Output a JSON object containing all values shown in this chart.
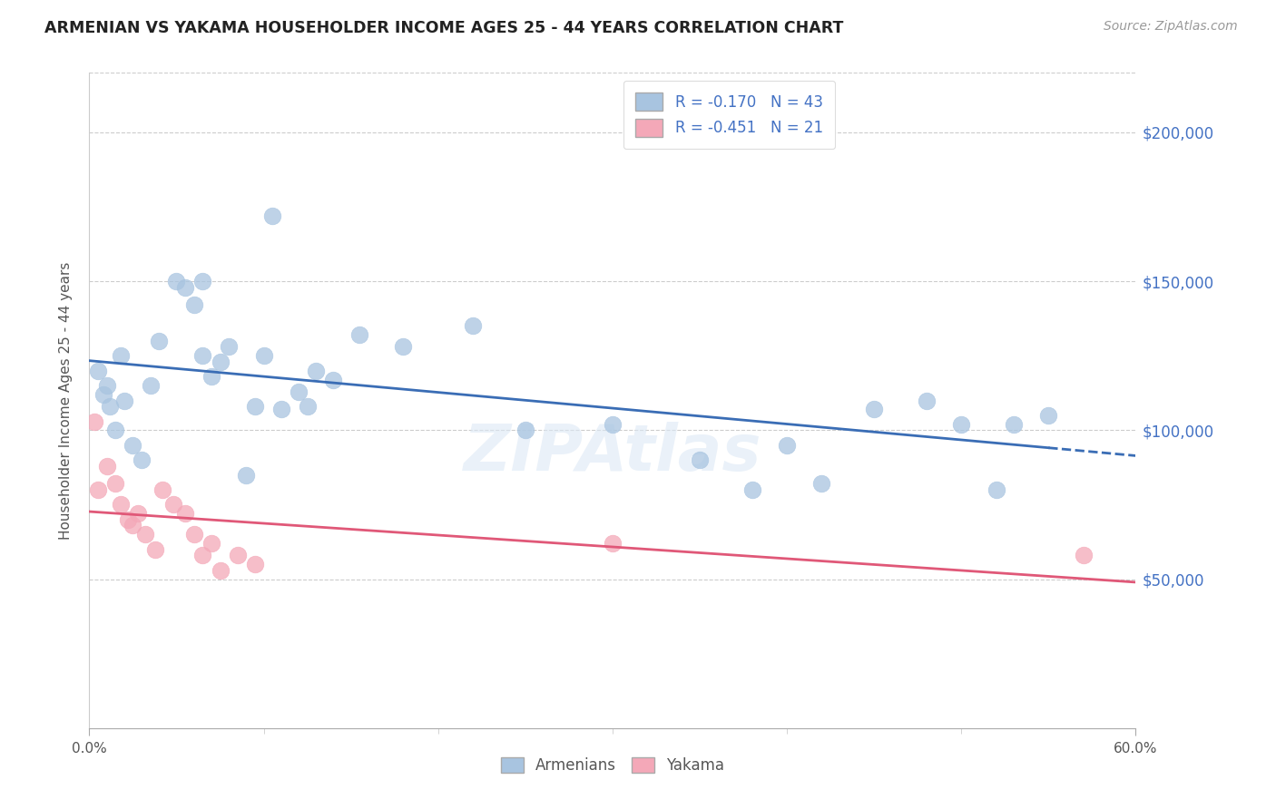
{
  "title": "ARMENIAN VS YAKAMA HOUSEHOLDER INCOME AGES 25 - 44 YEARS CORRELATION CHART",
  "source": "Source: ZipAtlas.com",
  "ylabel": "Householder Income Ages 25 - 44 years",
  "xlim": [
    0,
    0.6
  ],
  "ylim": [
    0,
    220000
  ],
  "xtick_labels_ends": [
    "0.0%",
    "60.0%"
  ],
  "xtick_vals_ends": [
    0.0,
    0.6
  ],
  "ytick_labels": [
    "$50,000",
    "$100,000",
    "$150,000",
    "$200,000"
  ],
  "ytick_vals": [
    50000,
    100000,
    150000,
    200000
  ],
  "armenian_R": "-0.170",
  "armenian_N": "43",
  "yakama_R": "-0.451",
  "yakama_N": "21",
  "armenian_color": "#a8c4e0",
  "yakama_color": "#f4a8b8",
  "armenian_line_color": "#3a6db5",
  "yakama_line_color": "#e05878",
  "watermark": "ZIPAtlas",
  "armenian_x": [
    0.005,
    0.008,
    0.01,
    0.012,
    0.015,
    0.018,
    0.02,
    0.025,
    0.03,
    0.035,
    0.04,
    0.05,
    0.055,
    0.06,
    0.065,
    0.065,
    0.07,
    0.075,
    0.08,
    0.09,
    0.095,
    0.1,
    0.105,
    0.11,
    0.12,
    0.125,
    0.13,
    0.14,
    0.155,
    0.18,
    0.22,
    0.25,
    0.3,
    0.35,
    0.38,
    0.4,
    0.42,
    0.45,
    0.48,
    0.5,
    0.52,
    0.53,
    0.55
  ],
  "armenian_y": [
    120000,
    112000,
    115000,
    108000,
    100000,
    125000,
    110000,
    95000,
    90000,
    115000,
    130000,
    150000,
    148000,
    142000,
    125000,
    150000,
    118000,
    123000,
    128000,
    85000,
    108000,
    125000,
    172000,
    107000,
    113000,
    108000,
    120000,
    117000,
    132000,
    128000,
    135000,
    100000,
    102000,
    90000,
    80000,
    95000,
    82000,
    107000,
    110000,
    102000,
    80000,
    102000,
    105000
  ],
  "yakama_x": [
    0.003,
    0.005,
    0.01,
    0.015,
    0.018,
    0.022,
    0.025,
    0.028,
    0.032,
    0.038,
    0.042,
    0.048,
    0.055,
    0.06,
    0.065,
    0.07,
    0.075,
    0.085,
    0.095,
    0.3,
    0.57
  ],
  "yakama_y": [
    103000,
    80000,
    88000,
    82000,
    75000,
    70000,
    68000,
    72000,
    65000,
    60000,
    80000,
    75000,
    72000,
    65000,
    58000,
    62000,
    53000,
    58000,
    55000,
    62000,
    58000
  ]
}
